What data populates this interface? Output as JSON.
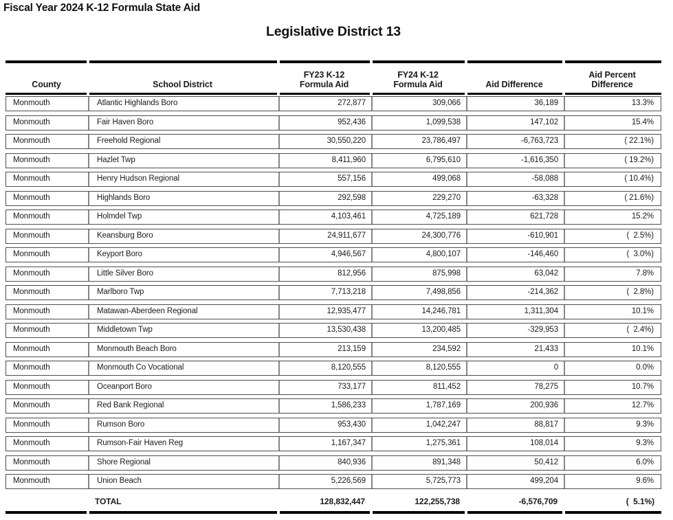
{
  "page": {
    "title": "Fiscal Year 2024 K-12 Formula State Aid",
    "subtitle": "Legislative District 13"
  },
  "table": {
    "headers": {
      "county": "County",
      "district": "School District",
      "fy23": "FY23 K-12\nFormula Aid",
      "fy24": "FY24 K-12\nFormula Aid",
      "diff": "Aid Difference",
      "pct": "Aid Percent\nDifference"
    },
    "rows": [
      {
        "county": "Monmouth",
        "district": "Atlantic Highlands Boro",
        "fy23": "272,877",
        "fy24": "309,066",
        "diff": "36,189",
        "pct": "13.3%"
      },
      {
        "county": "Monmouth",
        "district": "Fair Haven Boro",
        "fy23": "952,436",
        "fy24": "1,099,538",
        "diff": "147,102",
        "pct": "15.4%"
      },
      {
        "county": "Monmouth",
        "district": "Freehold Regional",
        "fy23": "30,550,220",
        "fy24": "23,786,497",
        "diff": "-6,763,723",
        "pct": "( 22.1%)"
      },
      {
        "county": "Monmouth",
        "district": "Hazlet Twp",
        "fy23": "8,411,960",
        "fy24": "6,795,610",
        "diff": "-1,616,350",
        "pct": "( 19.2%)"
      },
      {
        "county": "Monmouth",
        "district": "Henry Hudson Regional",
        "fy23": "557,156",
        "fy24": "499,068",
        "diff": "-58,088",
        "pct": "( 10.4%)"
      },
      {
        "county": "Monmouth",
        "district": "Highlands Boro",
        "fy23": "292,598",
        "fy24": "229,270",
        "diff": "-63,328",
        "pct": "( 21.6%)"
      },
      {
        "county": "Monmouth",
        "district": "Holmdel Twp",
        "fy23": "4,103,461",
        "fy24": "4,725,189",
        "diff": "621,728",
        "pct": "15.2%"
      },
      {
        "county": "Monmouth",
        "district": "Keansburg Boro",
        "fy23": "24,911,677",
        "fy24": "24,300,776",
        "diff": "-610,901",
        "pct": "(  2.5%)"
      },
      {
        "county": "Monmouth",
        "district": "Keyport Boro",
        "fy23": "4,946,567",
        "fy24": "4,800,107",
        "diff": "-146,460",
        "pct": "(  3.0%)"
      },
      {
        "county": "Monmouth",
        "district": "Little Silver Boro",
        "fy23": "812,956",
        "fy24": "875,998",
        "diff": "63,042",
        "pct": "7.8%"
      },
      {
        "county": "Monmouth",
        "district": "Marlboro Twp",
        "fy23": "7,713,218",
        "fy24": "7,498,856",
        "diff": "-214,362",
        "pct": "(  2.8%)"
      },
      {
        "county": "Monmouth",
        "district": "Matawan-Aberdeen Regional",
        "fy23": "12,935,477",
        "fy24": "14,246,781",
        "diff": "1,311,304",
        "pct": "10.1%"
      },
      {
        "county": "Monmouth",
        "district": "Middletown Twp",
        "fy23": "13,530,438",
        "fy24": "13,200,485",
        "diff": "-329,953",
        "pct": "(  2.4%)"
      },
      {
        "county": "Monmouth",
        "district": "Monmouth Beach Boro",
        "fy23": "213,159",
        "fy24": "234,592",
        "diff": "21,433",
        "pct": "10.1%"
      },
      {
        "county": "Monmouth",
        "district": "Monmouth Co Vocational",
        "fy23": "8,120,555",
        "fy24": "8,120,555",
        "diff": "0",
        "pct": "0.0%"
      },
      {
        "county": "Monmouth",
        "district": "Oceanport Boro",
        "fy23": "733,177",
        "fy24": "811,452",
        "diff": "78,275",
        "pct": "10.7%"
      },
      {
        "county": "Monmouth",
        "district": "Red Bank Regional",
        "fy23": "1,586,233",
        "fy24": "1,787,169",
        "diff": "200,936",
        "pct": "12.7%"
      },
      {
        "county": "Monmouth",
        "district": "Rumson Boro",
        "fy23": "953,430",
        "fy24": "1,042,247",
        "diff": "88,817",
        "pct": "9.3%"
      },
      {
        "county": "Monmouth",
        "district": "Rumson-Fair Haven Reg",
        "fy23": "1,167,347",
        "fy24": "1,275,361",
        "diff": "108,014",
        "pct": "9.3%"
      },
      {
        "county": "Monmouth",
        "district": "Shore Regional",
        "fy23": "840,936",
        "fy24": "891,348",
        "diff": "50,412",
        "pct": "6.0%"
      },
      {
        "county": "Monmouth",
        "district": "Union Beach",
        "fy23": "5,226,569",
        "fy24": "5,725,773",
        "diff": "499,204",
        "pct": "9.6%"
      }
    ],
    "total": {
      "county": "",
      "label": "TOTAL",
      "fy23": "128,832,447",
      "fy24": "122,255,738",
      "diff": "-6,576,709",
      "pct": "(  5.1%)"
    }
  }
}
